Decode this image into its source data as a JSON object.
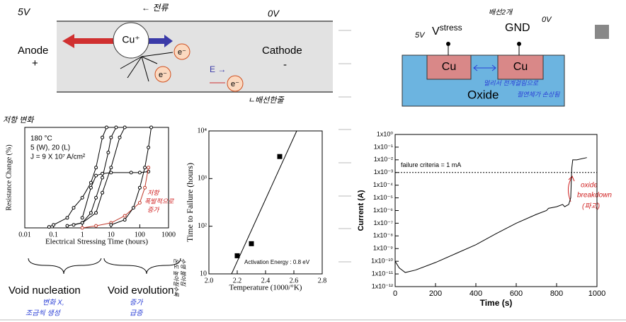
{
  "wire_diagram": {
    "left_voltage": "5V",
    "current_note": "← 전류",
    "right_voltage": "0V",
    "anode": "Anode",
    "anode_sign": "+",
    "cathode": "Cathode",
    "cathode_sign": "-",
    "ion": "Cu⁺",
    "electron": "e⁻",
    "field": "E →",
    "note": "ㄴ배선한줄"
  },
  "oxide_diagram": {
    "count_note": "배선2개",
    "stress_voltage": "5V",
    "stress": "V",
    "stress_sub": "stress",
    "ground": "GND",
    "ground_voltage": "0V",
    "metal": "Cu",
    "insulator": "Oxide",
    "note_line1": "멀리서 전계걸림으로",
    "note_line2": "절연체가 손상됨"
  },
  "notes": {
    "resistance_change": "저항 변화",
    "nucleation": "Void nucleation",
    "nucleation_note1": "변화 X,",
    "nucleation_note2": "조금씩 생성",
    "evolution": "Void evolution",
    "evolution_note1": "증가",
    "evolution_note2": "급증",
    "resistance_burst1": "저항",
    "resistance_burst2": "폭발적으로",
    "resistance_burst3": "증가",
    "temperature_note1": "온도 높아질수록",
    "temperature_note2": "수명 짧아짐",
    "breakdown1": "oxide",
    "breakdown2": "breakdown",
    "breakdown3": "(파괴)"
  },
  "chart_data": [
    {
      "type": "line",
      "xlabel": "Electrical Stressing Time (hours)",
      "ylabel": "Resistance Change (%)",
      "annotations": [
        "180 °C",
        "5 (W), 20 (L)",
        "J = 9 X 10⁷ A/cm²"
      ],
      "xlog": true,
      "xlim": [
        0.01,
        1000
      ],
      "xticks": [
        0.01,
        0.1,
        1,
        10,
        100,
        1000
      ],
      "ylim": [
        0,
        100
      ],
      "series": [
        {
          "color": "#000000",
          "x": [
            0.07,
            0.1,
            0.3,
            0.5,
            1,
            2,
            3,
            5,
            7
          ],
          "values": [
            1,
            3,
            10,
            20,
            30,
            45,
            60,
            90,
            100
          ]
        },
        {
          "color": "#000000",
          "x": [
            0.3,
            1,
            2,
            3,
            5,
            8,
            10,
            15
          ],
          "values": [
            2,
            5,
            15,
            30,
            50,
            75,
            90,
            100
          ]
        },
        {
          "color": "#000000",
          "x": [
            0.5,
            1,
            3,
            5,
            10,
            20,
            30
          ],
          "values": [
            3,
            5,
            15,
            35,
            60,
            90,
            100
          ]
        },
        {
          "color": "#000000",
          "x": [
            1,
            2,
            3,
            5,
            10,
            50,
            100,
            200
          ],
          "values": [
            10,
            40,
            52,
            54,
            55,
            55,
            55,
            56
          ]
        },
        {
          "color": "#c0392b",
          "x": [
            1,
            3,
            10,
            30,
            100,
            150,
            200
          ],
          "values": [
            0,
            2,
            5,
            12,
            25,
            40,
            60
          ]
        },
        {
          "color": "#000000",
          "x": [
            10,
            30,
            60,
            100,
            150,
            200,
            250
          ],
          "values": [
            3,
            8,
            20,
            40,
            60,
            80,
            100
          ]
        }
      ]
    },
    {
      "type": "scatter",
      "xlabel": "Temperature (1000/°K)",
      "ylabel": "Time to Failure (hours)",
      "annotation": "Activation Energy : 0.8 eV",
      "xlim": [
        2.0,
        2.8
      ],
      "xticks": [
        {
          "value": 2.0,
          "label": "2.0"
        },
        2.2,
        2.4,
        2.6,
        {
          "value": 2.8,
          "label": "2.8"
        }
      ],
      "ylog": true,
      "ylim": [
        10,
        10000
      ],
      "yticks": [
        10,
        {
          "value": 100,
          "label": "10²"
        },
        {
          "value": 1000,
          "label": "10³"
        },
        {
          "value": 10000,
          "label": "10⁴"
        }
      ],
      "series": [
        {
          "color": "#000000",
          "x": [
            2.2,
            2.3,
            2.5
          ],
          "values": [
            24,
            43,
            2900
          ]
        }
      ],
      "fit": {
        "x": [
          2.16,
          2.62
        ],
        "values": [
          10,
          10000
        ]
      }
    },
    {
      "type": "line",
      "xlabel": "Time (s)",
      "ylabel": "Current (A)",
      "xlim": [
        0,
        1000
      ],
      "xticks": [
        0,
        200,
        400,
        600,
        800,
        1000
      ],
      "ylog": true,
      "ylim": [
        1e-12,
        1
      ],
      "yticks": [
        {
          "value": 1e-12,
          "label": "1x10⁻¹²"
        },
        {
          "value": 1e-11,
          "label": "1x10⁻¹¹"
        },
        {
          "value": 1e-10,
          "label": "1x10⁻¹⁰"
        },
        {
          "value": 1e-09,
          "label": "1x10⁻⁹"
        },
        {
          "value": 1e-08,
          "label": "1x10⁻⁸"
        },
        {
          "value": 1e-07,
          "label": "1x10⁻⁷"
        },
        {
          "value": 1e-06,
          "label": "1x10⁻⁶"
        },
        {
          "value": 1e-05,
          "label": "1x10⁻⁵"
        },
        {
          "value": 0.0001,
          "label": "1x10⁻⁴"
        },
        {
          "value": 0.001,
          "label": "1x10⁻³"
        },
        {
          "value": 0.01,
          "label": "1x10⁻²"
        },
        {
          "value": 0.1,
          "label": "1x10⁻¹"
        },
        {
          "value": 1,
          "label": "1x10⁰"
        }
      ],
      "threshold": {
        "value": 0.001,
        "label": "failure criteria = 1 mA"
      },
      "series": [
        {
          "color": "#000000",
          "x": [
            0,
            20,
            50,
            100,
            200,
            300,
            400,
            500,
            600,
            700,
            750,
            760,
            800,
            830,
            840,
            860,
            870,
            875,
            880,
            900,
            950
          ],
          "values": [
            1e-10,
            3e-11,
            1.3e-11,
            2e-11,
            8e-11,
            4e-10,
            2e-09,
            1.5e-08,
            1e-07,
            5e-07,
            1e-06,
            1.5e-06,
            2e-06,
            3e-06,
            2e-06,
            3e-06,
            1e-05,
            0.002,
            0.01,
            0.01,
            0.015
          ]
        }
      ]
    }
  ]
}
